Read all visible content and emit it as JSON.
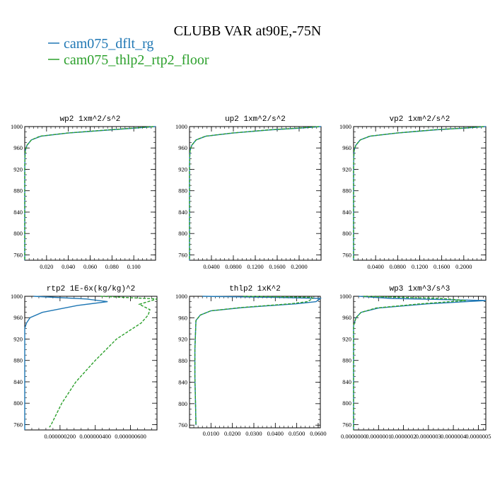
{
  "figure": {
    "title": "CLUBB VAR at90E,-75N",
    "legend": [
      {
        "label": "cam075_dflt_rg",
        "color": "#1f77b4"
      },
      {
        "label": "cam075_thlp2_rtp2_floor",
        "color": "#2ca02c"
      }
    ]
  },
  "chart_data": [
    {
      "type": "line",
      "title": "wp2   1xm^2/s^2",
      "ylim": [
        1000,
        750
      ],
      "y_ticks": [
        "760",
        "800",
        "840",
        "880",
        "920",
        "960",
        "1000"
      ],
      "xlim": [
        0,
        0.12
      ],
      "x_ticks": [
        {
          "v": 0.02,
          "label": "0.020"
        },
        {
          "v": 0.04,
          "label": "0.040"
        },
        {
          "v": 0.06,
          "label": "0.060"
        },
        {
          "v": 0.08,
          "label": "0.080"
        },
        {
          "v": 0.1,
          "label": "0.100"
        }
      ],
      "series": [
        {
          "name": "cam075_dflt_rg",
          "color": "#1f77b4",
          "points": [
            [
              0.12,
              1000
            ],
            [
              0.1,
              997
            ],
            [
              0.08,
              994
            ],
            [
              0.04,
              988
            ],
            [
              0.015,
              982
            ],
            [
              0.006,
              975
            ],
            [
              0.002,
              965
            ],
            [
              0.0005,
              955
            ],
            [
              0.0001,
              940
            ],
            [
              0,
              920
            ],
            [
              0,
              750
            ]
          ]
        },
        {
          "name": "cam075_thlp2_rtp2_floor",
          "color": "#2ca02c",
          "dashed": true,
          "points": [
            [
              0.118,
              1000
            ],
            [
              0.098,
              997
            ],
            [
              0.078,
              994
            ],
            [
              0.039,
              988
            ],
            [
              0.014,
              982
            ],
            [
              0.006,
              975
            ],
            [
              0.002,
              965
            ],
            [
              0.0005,
              955
            ],
            [
              0.0001,
              940
            ],
            [
              0,
              920
            ],
            [
              0,
              750
            ]
          ]
        }
      ]
    },
    {
      "type": "line",
      "title": "up2   1xm^2/s^2",
      "ylim": [
        1000,
        750
      ],
      "y_ticks": [
        "760",
        "800",
        "840",
        "880",
        "920",
        "960",
        "1000"
      ],
      "xlim": [
        0,
        0.24
      ],
      "x_ticks": [
        {
          "v": 0.04,
          "label": "0.0400"
        },
        {
          "v": 0.08,
          "label": "0.0800"
        },
        {
          "v": 0.12,
          "label": "0.1200"
        },
        {
          "v": 0.16,
          "label": "0.1600"
        },
        {
          "v": 0.2,
          "label": "0.2000"
        }
      ],
      "series": [
        {
          "name": "cam075_dflt_rg",
          "color": "#1f77b4",
          "points": [
            [
              0.24,
              1000
            ],
            [
              0.2,
              997
            ],
            [
              0.15,
              994
            ],
            [
              0.08,
              988
            ],
            [
              0.03,
              982
            ],
            [
              0.012,
              975
            ],
            [
              0.004,
              965
            ],
            [
              0.001,
              955
            ],
            [
              0.0002,
              940
            ],
            [
              0,
              920
            ],
            [
              0,
              750
            ]
          ]
        },
        {
          "name": "cam075_thlp2_rtp2_floor",
          "color": "#2ca02c",
          "dashed": true,
          "points": [
            [
              0.236,
              1000
            ],
            [
              0.196,
              997
            ],
            [
              0.147,
              994
            ],
            [
              0.078,
              988
            ],
            [
              0.029,
              982
            ],
            [
              0.012,
              975
            ],
            [
              0.004,
              965
            ],
            [
              0.001,
              955
            ],
            [
              0.0002,
              940
            ],
            [
              0,
              920
            ],
            [
              0,
              750
            ]
          ]
        }
      ]
    },
    {
      "type": "line",
      "title": "vp2   1xm^2/s^2",
      "ylim": [
        1000,
        750
      ],
      "y_ticks": [
        "760",
        "800",
        "840",
        "880",
        "920",
        "960",
        "1000"
      ],
      "xlim": [
        0,
        0.24
      ],
      "x_ticks": [
        {
          "v": 0.04,
          "label": "0.0400"
        },
        {
          "v": 0.08,
          "label": "0.0800"
        },
        {
          "v": 0.12,
          "label": "0.1200"
        },
        {
          "v": 0.16,
          "label": "0.1600"
        },
        {
          "v": 0.2,
          "label": "0.2000"
        }
      ],
      "series": [
        {
          "name": "cam075_dflt_rg",
          "color": "#1f77b4",
          "points": [
            [
              0.24,
              1000
            ],
            [
              0.2,
              997
            ],
            [
              0.15,
              994
            ],
            [
              0.08,
              988
            ],
            [
              0.03,
              982
            ],
            [
              0.012,
              975
            ],
            [
              0.004,
              965
            ],
            [
              0.001,
              955
            ],
            [
              0.0002,
              940
            ],
            [
              0,
              920
            ],
            [
              0,
              750
            ]
          ]
        },
        {
          "name": "cam075_thlp2_rtp2_floor",
          "color": "#2ca02c",
          "dashed": true,
          "points": [
            [
              0.236,
              1000
            ],
            [
              0.196,
              997
            ],
            [
              0.147,
              994
            ],
            [
              0.078,
              988
            ],
            [
              0.029,
              982
            ],
            [
              0.012,
              975
            ],
            [
              0.004,
              965
            ],
            [
              0.001,
              955
            ],
            [
              0.0002,
              940
            ],
            [
              0,
              920
            ],
            [
              0,
              750
            ]
          ]
        }
      ]
    },
    {
      "type": "line",
      "title": "rtp2   1E-6x(kg/kg)^2",
      "ylim": [
        1000,
        750
      ],
      "y_ticks": [
        "760",
        "800",
        "840",
        "880",
        "920",
        "960",
        "1000"
      ],
      "xlim": [
        0,
        7.5e-07
      ],
      "x_ticks": [
        {
          "v": 2e-07,
          "label": "0.000000200"
        },
        {
          "v": 4e-07,
          "label": "0.000000400"
        },
        {
          "v": 6e-07,
          "label": "0.000000600"
        }
      ],
      "series": [
        {
          "name": "cam075_dflt_rg",
          "color": "#1f77b4",
          "points": [
            [
              5e-08,
              1000
            ],
            [
              3.5e-07,
              995
            ],
            [
              4.7e-07,
              990
            ],
            [
              3e-07,
              983
            ],
            [
              1e-07,
              970
            ],
            [
              3e-08,
              960
            ],
            [
              1e-08,
              950
            ],
            [
              0,
              940
            ],
            [
              0,
              750
            ]
          ]
        },
        {
          "name": "cam075_thlp2_rtp2_floor",
          "color": "#2ca02c",
          "dashed": true,
          "points": [
            [
              4.3e-07,
              1000
            ],
            [
              7.5e-07,
              995
            ],
            [
              6.5e-07,
              985
            ],
            [
              7.1e-07,
              975
            ],
            [
              7e-07,
              965
            ],
            [
              6.6e-07,
              950
            ],
            [
              5.2e-07,
              920
            ],
            [
              4e-07,
              880
            ],
            [
              2.9e-07,
              840
            ],
            [
              2.1e-07,
              800
            ],
            [
              1.5e-07,
              760
            ],
            [
              1.4e-07,
              755
            ]
          ]
        }
      ]
    },
    {
      "type": "line",
      "title": "thlp2   1xK^2",
      "ylim": [
        1000,
        755
      ],
      "y_ticks": [
        "760",
        "800",
        "840",
        "880",
        "920",
        "960",
        "1000"
      ],
      "xlim": [
        0,
        0.061
      ],
      "x_ticks": [
        {
          "v": 0.01,
          "label": "0.0100"
        },
        {
          "v": 0.02,
          "label": "0.0200"
        },
        {
          "v": 0.03,
          "label": "0.0300"
        },
        {
          "v": 0.04,
          "label": "0.0400"
        },
        {
          "v": 0.05,
          "label": "0.0500"
        },
        {
          "v": 0.06,
          "label": "0.0600"
        }
      ],
      "series": [
        {
          "name": "cam075_dflt_rg",
          "color": "#1f77b4",
          "points": [
            [
              0.006,
              1000
            ],
            [
              0.04,
              998
            ],
            [
              0.061,
              996
            ],
            [
              0.059,
              990
            ],
            [
              0.05,
              986
            ],
            [
              0.025,
              979
            ],
            [
              0.01,
              973
            ],
            [
              0.005,
              965
            ],
            [
              0.003,
              955
            ],
            [
              0.0025,
              900
            ],
            [
              0.0025,
              850
            ],
            [
              0.0028,
              800
            ],
            [
              0.003,
              760
            ]
          ]
        },
        {
          "name": "cam075_thlp2_rtp2_floor",
          "color": "#2ca02c",
          "dashed": true,
          "points": [
            [
              0.025,
              1000
            ],
            [
              0.057,
              998
            ],
            [
              0.0575,
              996
            ],
            [
              0.055,
              990
            ],
            [
              0.047,
              986
            ],
            [
              0.024,
              979
            ],
            [
              0.01,
              973
            ],
            [
              0.005,
              965
            ],
            [
              0.003,
              955
            ],
            [
              0.0025,
              900
            ],
            [
              0.0025,
              850
            ],
            [
              0.0028,
              800
            ],
            [
              0.003,
              760
            ]
          ]
        }
      ]
    },
    {
      "type": "line",
      "title": "wp3   1xm^3/s^3",
      "ylim": [
        1000,
        750
      ],
      "y_ticks": [
        "760",
        "800",
        "840",
        "880",
        "920",
        "960",
        "1000"
      ],
      "xlim": [
        0,
        5.3e-07
      ],
      "x_ticks": [
        {
          "v": 0,
          "label": "0.0000000"
        },
        {
          "v": 1e-07,
          "label": "0.0000001"
        },
        {
          "v": 2e-07,
          "label": "0.0000002"
        },
        {
          "v": 3e-07,
          "label": "0.0000003"
        },
        {
          "v": 4e-07,
          "label": "0.0000004"
        },
        {
          "v": 5e-07,
          "label": "0.0000005"
        }
      ],
      "series": [
        {
          "name": "cam075_dflt_rg",
          "color": "#1f77b4",
          "points": [
            [
              2e-08,
              1000
            ],
            [
              1.5e-07,
              996
            ],
            [
              5.3e-07,
              992
            ],
            [
              3e-07,
              986
            ],
            [
              1e-07,
              978
            ],
            [
              3e-08,
              970
            ],
            [
              1e-08,
              960
            ],
            [
              0,
              945
            ],
            [
              0,
              750
            ]
          ]
        },
        {
          "name": "cam075_thlp2_rtp2_floor",
          "color": "#2ca02c",
          "dashed": true,
          "points": [
            [
              4e-08,
              1000
            ],
            [
              3.5e-07,
              996
            ],
            [
              4.5e-07,
              992
            ],
            [
              2.7e-07,
              986
            ],
            [
              9e-08,
              978
            ],
            [
              3e-08,
              970
            ],
            [
              1e-08,
              960
            ],
            [
              0,
              945
            ],
            [
              0,
              750
            ]
          ]
        }
      ]
    }
  ]
}
